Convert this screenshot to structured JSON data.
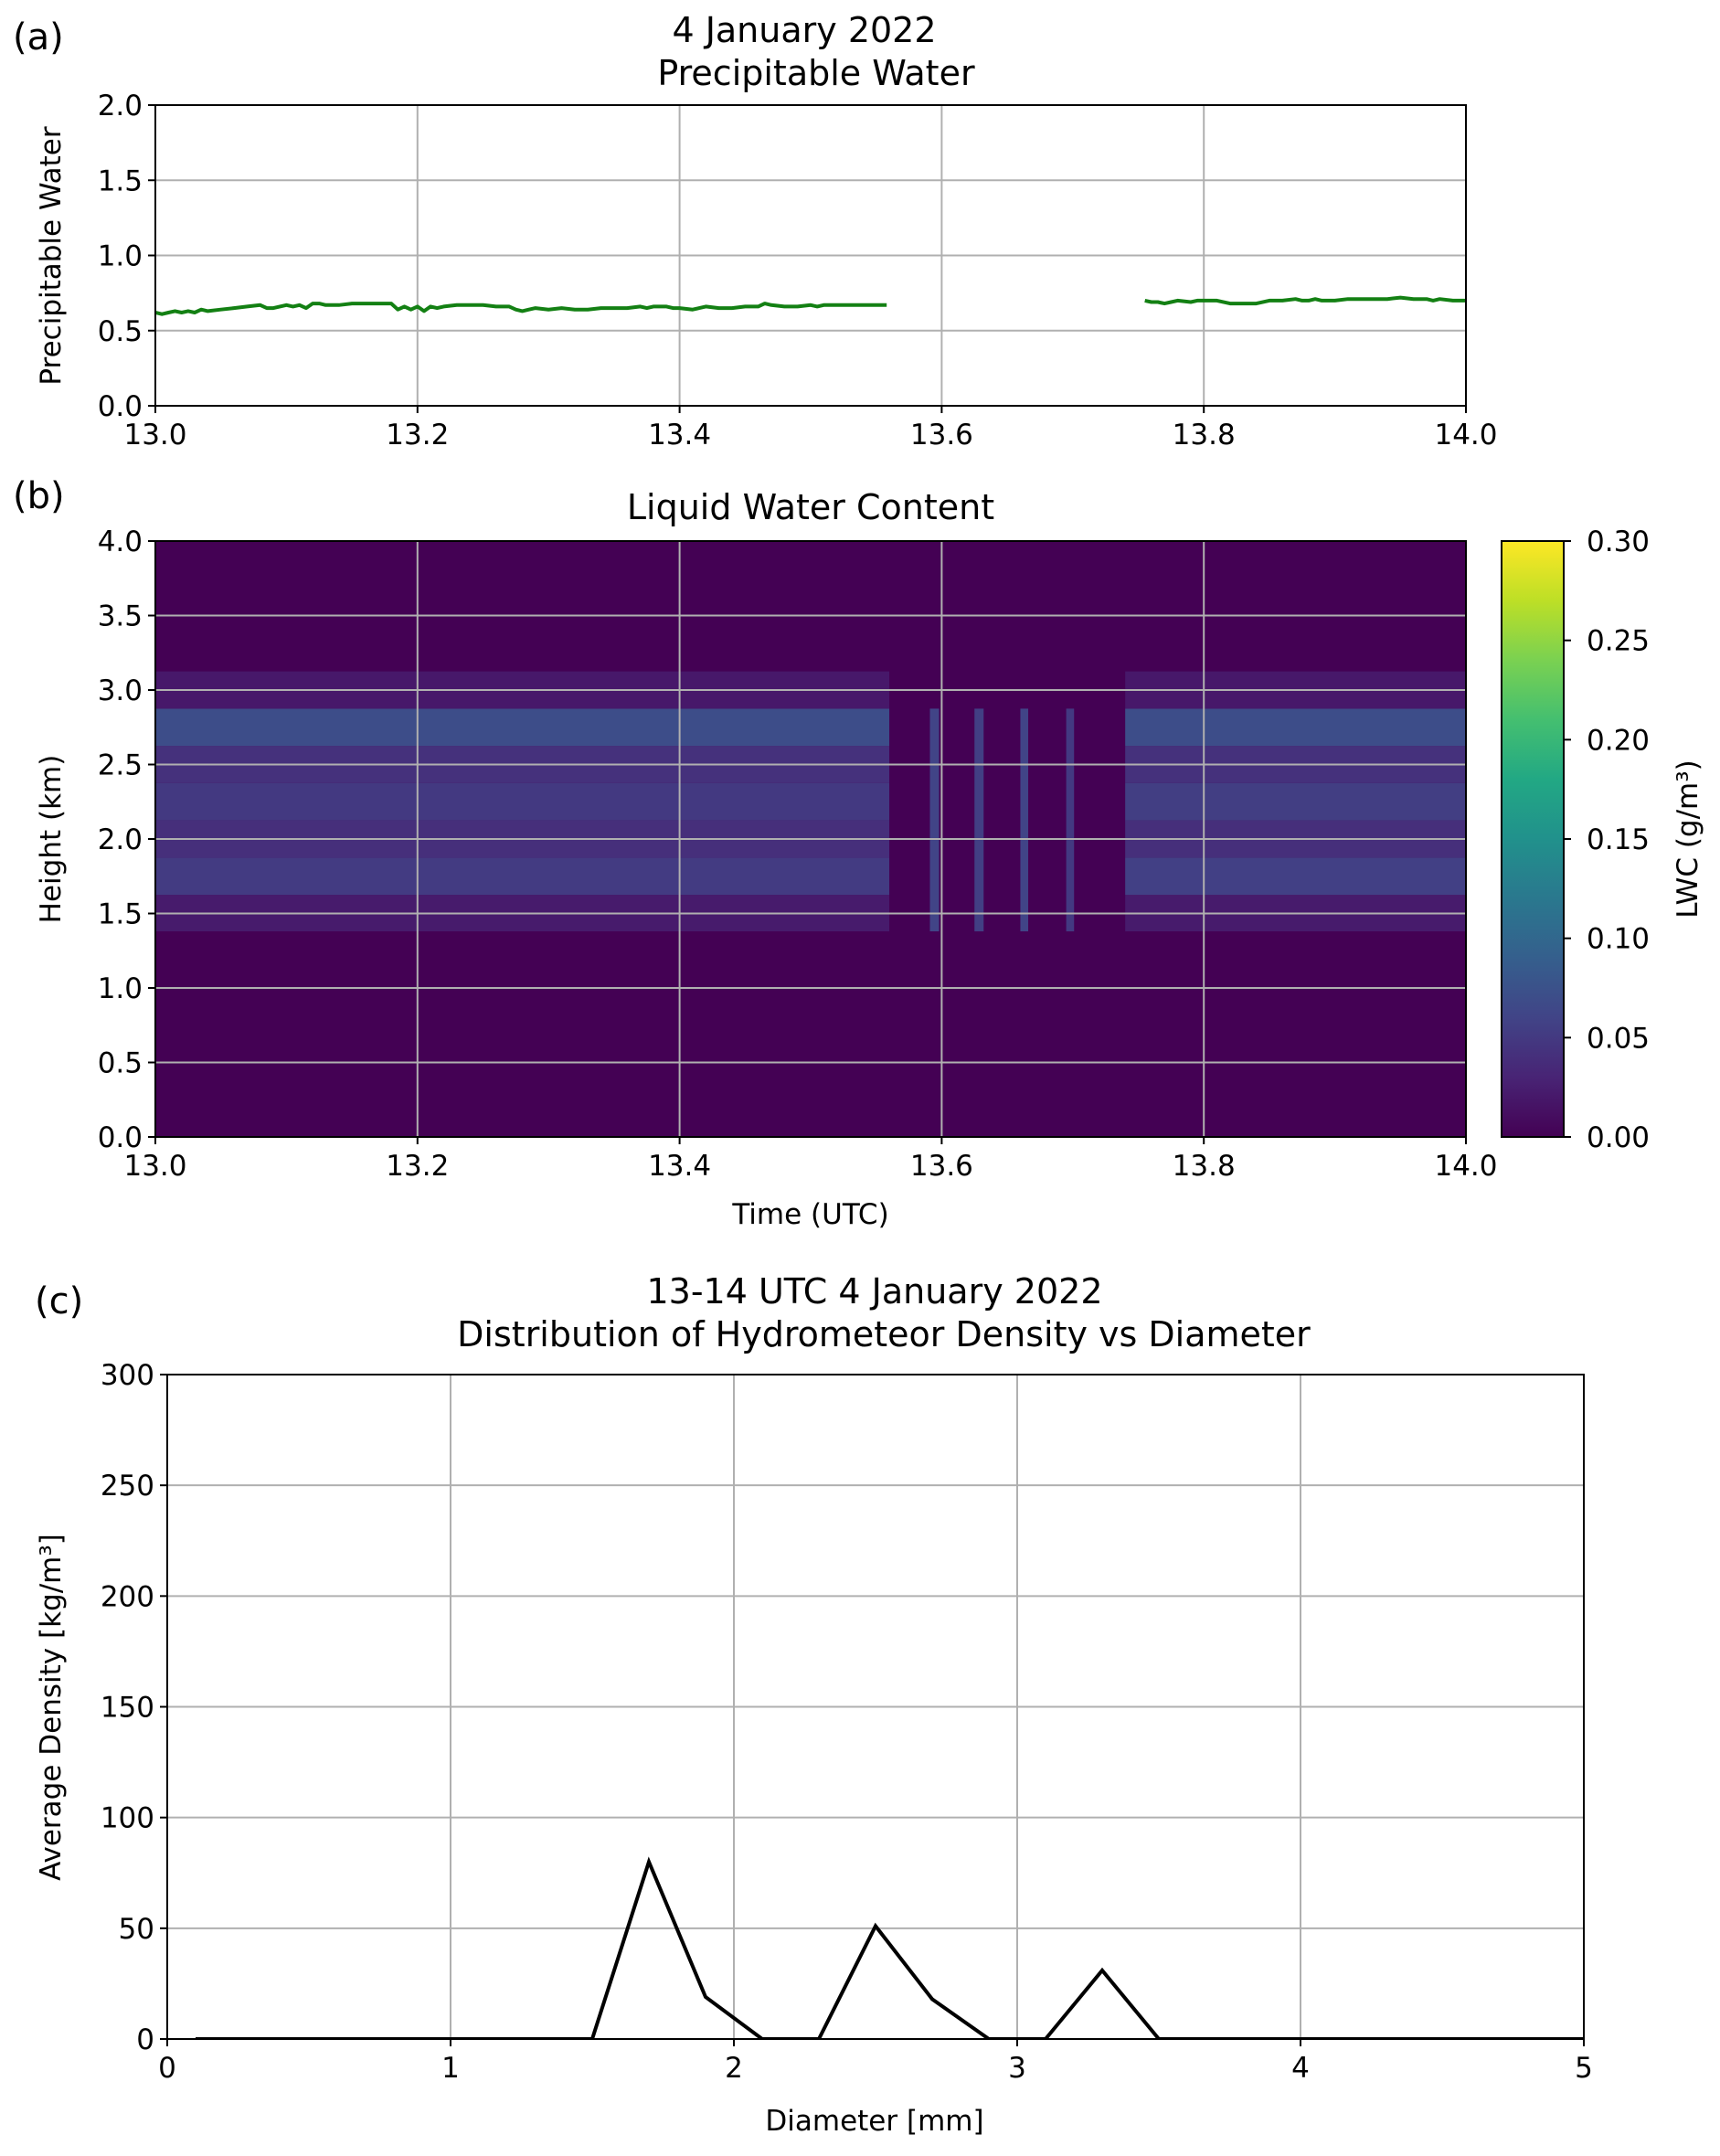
{
  "panel_labels": [
    "(a)",
    "(b)",
    "(c)"
  ],
  "chart_data": [
    {
      "type": "line",
      "title_line1": "4 January 2022",
      "title_line2": "Precipitable Water",
      "xlabel": "",
      "ylabel": "Precipitable Water",
      "xlim": [
        13.0,
        14.0
      ],
      "ylim": [
        0.0,
        2.0
      ],
      "xticks": [
        "13.0",
        "13.2",
        "13.4",
        "13.6",
        "13.8",
        "14.0"
      ],
      "yticks": [
        "0.0",
        "0.5",
        "1.0",
        "1.5",
        "2.0"
      ],
      "grid": true,
      "color": "#138013",
      "segments": [
        {
          "x": [
            13.0,
            13.005,
            13.01,
            13.015,
            13.02,
            13.025,
            13.03,
            13.035,
            13.04,
            13.05,
            13.06,
            13.07,
            13.08,
            13.085,
            13.09,
            13.1,
            13.105,
            13.11,
            13.115,
            13.12,
            13.125,
            13.13,
            13.135,
            13.14,
            13.15,
            13.16,
            13.17,
            13.18,
            13.185,
            13.19,
            13.195,
            13.2,
            13.205,
            13.21,
            13.215,
            13.22,
            13.23,
            13.24,
            13.25,
            13.26,
            13.27,
            13.275,
            13.28,
            13.285,
            13.29,
            13.3,
            13.31,
            13.32,
            13.325,
            13.33,
            13.34,
            13.35,
            13.36,
            13.37,
            13.375,
            13.38,
            13.385,
            13.39,
            13.395,
            13.4,
            13.41,
            13.415,
            13.42,
            13.43,
            13.44,
            13.45,
            13.46,
            13.465,
            13.47,
            13.48,
            13.49,
            13.5,
            13.505,
            13.51,
            13.52,
            13.53,
            13.54,
            13.55,
            13.558
          ],
          "y": [
            0.62,
            0.61,
            0.62,
            0.63,
            0.62,
            0.63,
            0.62,
            0.64,
            0.63,
            0.64,
            0.65,
            0.66,
            0.67,
            0.65,
            0.65,
            0.67,
            0.66,
            0.67,
            0.65,
            0.68,
            0.68,
            0.67,
            0.67,
            0.67,
            0.68,
            0.68,
            0.68,
            0.68,
            0.64,
            0.66,
            0.64,
            0.66,
            0.63,
            0.66,
            0.65,
            0.66,
            0.67,
            0.67,
            0.67,
            0.66,
            0.66,
            0.64,
            0.63,
            0.64,
            0.65,
            0.64,
            0.65,
            0.64,
            0.64,
            0.64,
            0.65,
            0.65,
            0.65,
            0.66,
            0.65,
            0.66,
            0.66,
            0.66,
            0.65,
            0.65,
            0.64,
            0.65,
            0.66,
            0.65,
            0.65,
            0.66,
            0.66,
            0.68,
            0.67,
            0.66,
            0.66,
            0.67,
            0.66,
            0.67,
            0.67,
            0.67,
            0.67,
            0.67,
            0.67
          ]
        },
        {
          "x": [
            13.755,
            13.76,
            13.765,
            13.77,
            13.775,
            13.78,
            13.79,
            13.795,
            13.8,
            13.81,
            13.82,
            13.83,
            13.84,
            13.85,
            13.86,
            13.87,
            13.875,
            13.88,
            13.885,
            13.89,
            13.9,
            13.91,
            13.92,
            13.93,
            13.94,
            13.95,
            13.96,
            13.97,
            13.975,
            13.98,
            13.99,
            14.0
          ],
          "y": [
            0.7,
            0.69,
            0.69,
            0.68,
            0.69,
            0.7,
            0.69,
            0.7,
            0.7,
            0.7,
            0.68,
            0.68,
            0.68,
            0.7,
            0.7,
            0.71,
            0.7,
            0.7,
            0.71,
            0.7,
            0.7,
            0.71,
            0.71,
            0.71,
            0.71,
            0.72,
            0.71,
            0.71,
            0.7,
            0.71,
            0.7,
            0.7
          ]
        }
      ]
    },
    {
      "type": "heatmap",
      "title": "Liquid Water Content",
      "xlabel": "Time (UTC)",
      "ylabel": "Height (km)",
      "xlim": [
        13.0,
        14.0
      ],
      "ylim": [
        0.0,
        4.0
      ],
      "xticks": [
        "13.0",
        "13.2",
        "13.4",
        "13.6",
        "13.8",
        "14.0"
      ],
      "yticks": [
        "0.0",
        "0.5",
        "1.0",
        "1.5",
        "2.0",
        "2.5",
        "3.0",
        "3.5",
        "4.0"
      ],
      "grid": true,
      "colormap": "viridis",
      "colorbar": {
        "label": "LWC (g/m³)",
        "range": [
          0.0,
          0.3
        ],
        "ticks": [
          "0.00",
          "0.05",
          "0.10",
          "0.15",
          "0.20",
          "0.25",
          "0.30"
        ]
      },
      "background_value": 0.0,
      "height_bins": [
        [
          1.38,
          1.625
        ],
        [
          1.625,
          1.875
        ],
        [
          1.875,
          2.125
        ],
        [
          2.125,
          2.375
        ],
        [
          2.375,
          2.625
        ],
        [
          2.625,
          2.875
        ],
        [
          2.875,
          3.125
        ]
      ],
      "bands": [
        {
          "t": [
            13.0,
            13.56
          ],
          "values": [
            0.022,
            0.052,
            0.04,
            0.05,
            0.042,
            0.07,
            0.02
          ]
        },
        {
          "t": [
            13.74,
            14.0
          ],
          "values": [
            0.022,
            0.056,
            0.04,
            0.054,
            0.042,
            0.07,
            0.02
          ]
        }
      ],
      "spikes": [
        {
          "t": [
            13.591,
            13.598
          ],
          "top": 2.875,
          "value": 0.06
        },
        {
          "t": [
            13.625,
            13.632
          ],
          "top": 2.875,
          "value": 0.055
        },
        {
          "t": [
            13.66,
            13.666
          ],
          "top": 2.875,
          "value": 0.06
        },
        {
          "t": [
            13.695,
            13.701
          ],
          "top": 2.875,
          "value": 0.05
        }
      ]
    },
    {
      "type": "line",
      "title_line1": "13-14 UTC 4 January 2022",
      "title_line2": "Distribution of Hydrometeor Density vs Diameter",
      "xlabel": "Diameter [mm]",
      "ylabel": "Average Density [kg/m³]",
      "xlim": [
        0,
        5
      ],
      "ylim": [
        0,
        300
      ],
      "xticks": [
        "0",
        "1",
        "2",
        "3",
        "4",
        "5"
      ],
      "yticks": [
        "0",
        "50",
        "100",
        "150",
        "200",
        "250",
        "300"
      ],
      "grid": true,
      "color": "#000000",
      "x": [
        0.1,
        0.3,
        0.5,
        0.7,
        0.9,
        1.1,
        1.3,
        1.5,
        1.7,
        1.9,
        2.1,
        2.3,
        2.5,
        2.7,
        2.9,
        3.1,
        3.3,
        3.5,
        3.7,
        3.9,
        4.1,
        4.3,
        4.5,
        4.7,
        4.9,
        5.0
      ],
      "y": [
        0,
        0,
        0,
        0,
        0,
        0,
        0,
        0,
        80,
        19,
        0,
        0,
        51,
        18,
        0,
        0,
        31,
        0,
        0,
        0,
        0,
        0,
        0,
        0,
        0,
        0
      ]
    }
  ]
}
